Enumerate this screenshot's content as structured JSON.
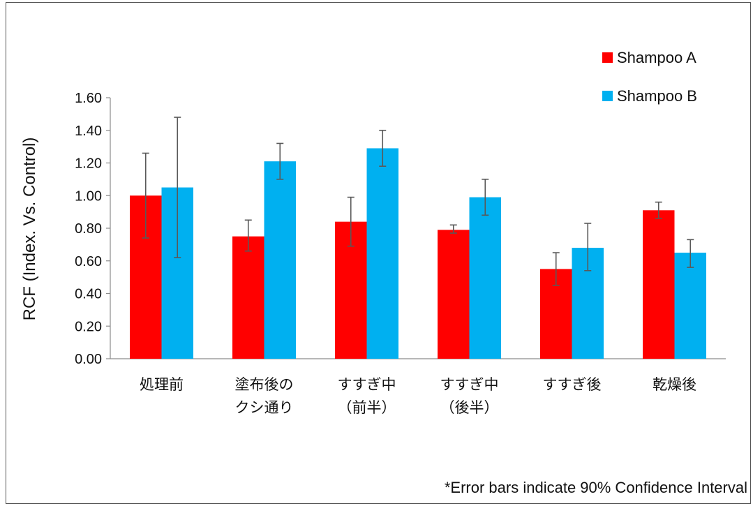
{
  "chart_data": {
    "type": "bar",
    "categories": [
      [
        "処理前"
      ],
      [
        "塗布後の",
        "クシ通り"
      ],
      [
        "すすぎ中",
        "（前半）"
      ],
      [
        "すすぎ中",
        "（後半）"
      ],
      [
        "すすぎ後"
      ],
      [
        "乾燥後"
      ]
    ],
    "series": [
      {
        "name": "Shampoo A",
        "color": "#ff0000",
        "values": [
          1.0,
          0.75,
          0.84,
          0.79,
          0.55,
          0.91
        ],
        "error_low": [
          0.74,
          0.66,
          0.69,
          0.77,
          0.45,
          0.86
        ],
        "error_high": [
          1.26,
          0.85,
          0.99,
          0.82,
          0.65,
          0.96
        ]
      },
      {
        "name": "Shampoo B",
        "color": "#00b0f0",
        "values": [
          1.05,
          1.21,
          1.29,
          0.99,
          0.68,
          0.65
        ],
        "error_low": [
          0.62,
          1.1,
          1.18,
          0.88,
          0.54,
          0.56
        ],
        "error_high": [
          1.48,
          1.32,
          1.4,
          1.1,
          0.83,
          0.73
        ]
      }
    ],
    "ylabel": "RCF (Index. Vs. Control)",
    "ylim": [
      0,
      1.6
    ],
    "yticks": [
      "0.00",
      "0.20",
      "0.40",
      "0.60",
      "0.80",
      "1.00",
      "1.20",
      "1.40",
      "1.60"
    ],
    "legend_position": "top-right",
    "grid": false,
    "annotation": "*Error bars indicate 90% Confidence Interval"
  }
}
